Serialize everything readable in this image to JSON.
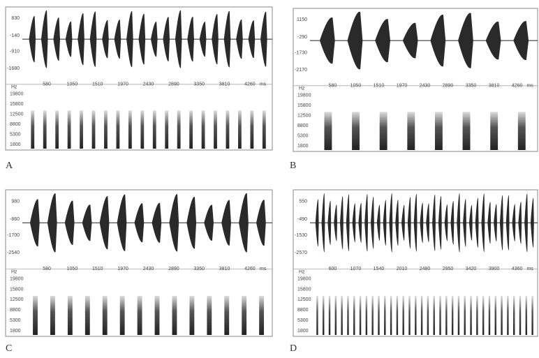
{
  "panels": [
    {
      "label": "A",
      "oscillogram": {
        "yticks": [
          "830",
          "-140",
          "-910",
          "-1680"
        ]
      },
      "time_axis": {
        "ticks": [
          "580",
          "1050",
          "1510",
          "1970",
          "2430",
          "2890",
          "3350",
          "3810",
          "4260"
        ],
        "unit": "ms"
      },
      "spectrogram": {
        "unit": "Hz",
        "yticks": [
          "19800",
          "15800",
          "12500",
          "8800",
          "5300",
          "1800"
        ]
      }
    },
    {
      "label": "B",
      "oscillogram": {
        "yticks": [
          "1150",
          "-290",
          "-1730",
          "-2170"
        ]
      },
      "time_axis": {
        "ticks": [
          "580",
          "1050",
          "1510",
          "1970",
          "2430",
          "2890",
          "3350",
          "3810",
          "4260"
        ],
        "unit": "ms"
      },
      "spectrogram": {
        "unit": "Hz",
        "yticks": [
          "19800",
          "15800",
          "12500",
          "8800",
          "5300",
          "1800"
        ]
      }
    },
    {
      "label": "C",
      "oscillogram": {
        "yticks": [
          "980",
          "-860",
          "-1700",
          "-2540"
        ]
      },
      "time_axis": {
        "ticks": [
          "580",
          "1050",
          "1510",
          "1970",
          "2430",
          "2890",
          "3350",
          "3810",
          "4260"
        ],
        "unit": "ms"
      },
      "spectrogram": {
        "unit": "Hz",
        "yticks": [
          "19800",
          "15800",
          "12500",
          "8800",
          "5300",
          "1800"
        ]
      }
    },
    {
      "label": "D",
      "oscillogram": {
        "yticks": [
          "550",
          "-490",
          "-1530",
          "-2570"
        ]
      },
      "time_axis": {
        "ticks": [
          "600",
          "1070",
          "1540",
          "2010",
          "2480",
          "2950",
          "3420",
          "3900",
          "4360"
        ],
        "unit": "ms"
      },
      "spectrogram": {
        "unit": "Hz",
        "yticks": [
          "19800",
          "15800",
          "12500",
          "8800",
          "5300",
          "1800"
        ]
      }
    }
  ]
}
